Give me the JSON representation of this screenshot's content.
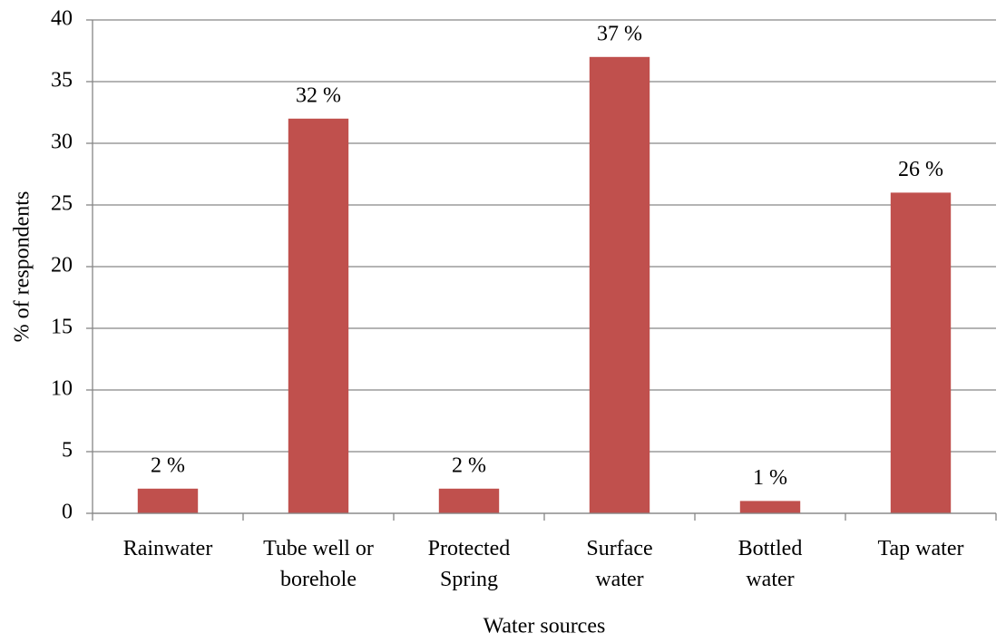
{
  "chart_data": {
    "type": "bar",
    "categories": [
      "Rainwater",
      "Tube well or\nborehole",
      "Protected\nSpring",
      "Surface\nwater",
      "Bottled\nwater",
      "Tap water"
    ],
    "values": [
      2,
      32,
      2,
      37,
      1,
      26
    ],
    "value_labels": [
      "2 %",
      "32 %",
      "2 %",
      "37 %",
      "1 %",
      "26 %"
    ],
    "color": "#c0504d",
    "x_label": "Water sources",
    "y_label": "% of respondents",
    "ylim": [
      0,
      40
    ],
    "yticks": [
      0,
      5,
      10,
      15,
      20,
      25,
      30,
      35,
      40
    ],
    "grid": true
  }
}
